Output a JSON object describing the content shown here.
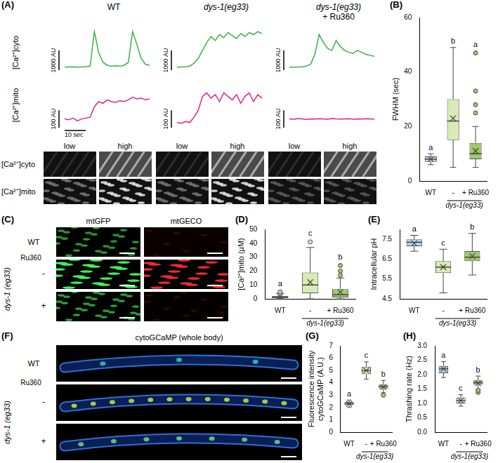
{
  "chart_data": [
    {
      "type": "line",
      "x": [
        0,
        2,
        4,
        6,
        8,
        10,
        12,
        14,
        16,
        18,
        20,
        22,
        24,
        26,
        28,
        30,
        32,
        34,
        36,
        38,
        40
      ],
      "xlim": [
        0,
        40
      ],
      "ylim": [
        0,
        2200
      ],
      "tick_labels": false,
      "series": [
        {
          "color": "#3cb043",
          "values": [
            150,
            160,
            170,
            150,
            160,
            180,
            200,
            1950,
            900,
            400,
            250,
            200,
            220,
            200,
            250,
            400,
            1950,
            1300,
            600,
            300,
            250
          ]
        }
      ],
      "y_scale_bar": {
        "value": 1000,
        "label": "1000 AU"
      }
    },
    {
      "type": "line",
      "x": [
        0,
        2,
        4,
        6,
        8,
        10,
        12,
        14,
        16,
        18,
        20,
        22,
        24,
        26,
        28,
        30,
        32,
        34,
        36,
        38,
        40
      ],
      "xlim": [
        0,
        40
      ],
      "ylim": [
        0,
        250
      ],
      "tick_labels": false,
      "series": [
        {
          "color": "#e0218a",
          "values": [
            50,
            45,
            55,
            40,
            50,
            55,
            60,
            120,
            150,
            140,
            160,
            150,
            145,
            155,
            150,
            160,
            175,
            165,
            170,
            160,
            165
          ]
        }
      ],
      "y_scale_bar": {
        "value": 100,
        "label": "100 AU"
      },
      "x_scale_bar": {
        "value": 10,
        "label": "10 sec"
      }
    },
    {
      "type": "line",
      "x": [
        0,
        2,
        4,
        6,
        8,
        10,
        12,
        14,
        16,
        18,
        20,
        22,
        24,
        26,
        28,
        30,
        32,
        34,
        36,
        38,
        40
      ],
      "xlim": [
        0,
        40
      ],
      "ylim": [
        0,
        2200
      ],
      "tick_labels": false,
      "series": [
        {
          "color": "#3cb043",
          "values": [
            150,
            160,
            170,
            200,
            350,
            600,
            1000,
            1400,
            1700,
            1500,
            1800,
            1650,
            1900,
            1750,
            1600,
            1850,
            1700,
            1900,
            1800,
            1950,
            1850
          ]
        }
      ],
      "y_scale_bar": {
        "value": 1000,
        "label": "1000 AU"
      }
    },
    {
      "type": "line",
      "x": [
        0,
        2,
        4,
        6,
        8,
        10,
        12,
        14,
        16,
        18,
        20,
        22,
        24,
        26,
        28,
        30,
        32,
        34,
        36,
        38,
        40
      ],
      "xlim": [
        0,
        40
      ],
      "ylim": [
        0,
        250
      ],
      "tick_labels": false,
      "series": [
        {
          "color": "#e0218a",
          "values": [
            30,
            25,
            35,
            30,
            60,
            100,
            180,
            200,
            170,
            190,
            150,
            200,
            180,
            160,
            190,
            140,
            180,
            200,
            150,
            190,
            170
          ]
        }
      ],
      "y_scale_bar": {
        "value": 100,
        "label": "100 AU"
      }
    },
    {
      "type": "line",
      "x": [
        0,
        2,
        4,
        6,
        8,
        10,
        12,
        14,
        16,
        18,
        20,
        22,
        24,
        26,
        28,
        30,
        32,
        34,
        36,
        38,
        40
      ],
      "xlim": [
        0,
        40
      ],
      "ylim": [
        0,
        2200
      ],
      "tick_labels": false,
      "series": [
        {
          "color": "#3cb043",
          "values": [
            150,
            150,
            160,
            170,
            200,
            300,
            800,
            1800,
            1400,
            1100,
            1000,
            1500,
            1200,
            1000,
            900,
            850,
            1000,
            900,
            800,
            750,
            700
          ]
        }
      ],
      "y_scale_bar": {
        "value": 1000,
        "label": "1000 AU"
      }
    },
    {
      "type": "line",
      "x": [
        0,
        2,
        4,
        6,
        8,
        10,
        12,
        14,
        16,
        18,
        20,
        22,
        24,
        26,
        28,
        30,
        32,
        34,
        36,
        38,
        40
      ],
      "xlim": [
        0,
        40
      ],
      "ylim": [
        0,
        250
      ],
      "tick_labels": false,
      "series": [
        {
          "color": "#e0218a",
          "values": [
            50,
            48,
            52,
            50,
            47,
            50,
            49,
            51,
            50,
            48,
            52,
            50,
            49,
            50,
            51,
            48,
            50,
            49,
            51,
            50,
            49
          ]
        }
      ],
      "y_scale_bar": {
        "value": 100,
        "label": "100 AU"
      }
    },
    {
      "type": "box",
      "panel": "(B)",
      "y_label": "FWHM (sec)",
      "categories": [
        "WT",
        "-",
        "+ Ru360"
      ],
      "group": {
        "label": "dys-1(eg33)",
        "categories": [
          "-",
          "+ Ru360"
        ]
      },
      "ylim": [
        0,
        60
      ],
      "yticks": [
        0,
        20,
        40,
        60
      ],
      "grid": false,
      "colors": [
        "#b4d3ee",
        "#d8ebb5",
        "#9dc96a"
      ],
      "boxes": [
        {
          "min": 6,
          "q1": 7,
          "median": 8,
          "q3": 9,
          "max": 10,
          "mean": 8,
          "outliers": []
        },
        {
          "min": 5,
          "q1": 15,
          "median": 22,
          "q3": 30,
          "max": 49,
          "mean": 23,
          "outliers": []
        },
        {
          "min": 5,
          "q1": 8,
          "median": 10,
          "q3": 14,
          "max": 20,
          "mean": 11,
          "outliers": [
            25,
            28,
            33,
            47
          ]
        }
      ],
      "significance": [
        "a",
        "b",
        "a"
      ]
    },
    {
      "type": "box",
      "panel": "(D)",
      "y_label": "[Ca²⁺]mito (μM)",
      "categories": [
        "WT",
        "-",
        "+ Ru360"
      ],
      "group": {
        "label": "dys-1(eg33)",
        "categories": [
          "-",
          "+ Ru360"
        ]
      },
      "ylim": [
        0,
        50
      ],
      "yticks": [
        0,
        10,
        20,
        30,
        40,
        50
      ],
      "grid": false,
      "colors": [
        "#b4d3ee",
        "#d8ebb5",
        "#9dc96a"
      ],
      "boxes": [
        {
          "min": 0,
          "q1": 0.5,
          "median": 1,
          "q3": 2,
          "max": 4,
          "mean": 1.5,
          "outliers": [
            5
          ]
        },
        {
          "min": 0,
          "q1": 4,
          "median": 10,
          "q3": 19,
          "max": 37,
          "mean": 12,
          "outliers": [
            41
          ]
        },
        {
          "min": 0,
          "q1": 1,
          "median": 3,
          "q3": 7,
          "max": 15,
          "mean": 5,
          "outliers": [
            17,
            20,
            24
          ]
        }
      ],
      "significance": [
        "a",
        "c",
        "b"
      ]
    },
    {
      "type": "box",
      "panel": "(E)",
      "y_label": "Intracellular pH",
      "categories": [
        "WT",
        "-",
        "+ Ru360"
      ],
      "group": {
        "label": "dys-1(eg33)",
        "categories": [
          "-",
          "+ Ru360"
        ]
      },
      "ylim": [
        4.5,
        8.0
      ],
      "yticks": [
        4.5,
        5.5,
        6.5,
        7.5
      ],
      "grid": false,
      "colors": [
        "#b4d3ee",
        "#d8ebb5",
        "#9dc96a"
      ],
      "boxes": [
        {
          "min": 6.9,
          "q1": 7.15,
          "median": 7.35,
          "q3": 7.5,
          "max": 7.7,
          "mean": 7.3,
          "outliers": []
        },
        {
          "min": 4.8,
          "q1": 5.8,
          "median": 6.1,
          "q3": 6.4,
          "max": 7.0,
          "mean": 6.1,
          "outliers": []
        },
        {
          "min": 5.7,
          "q1": 6.4,
          "median": 6.6,
          "q3": 6.9,
          "max": 7.8,
          "mean": 6.65,
          "outliers": []
        }
      ],
      "significance": [
        "a",
        "c",
        "b"
      ]
    },
    {
      "type": "box",
      "panel": "(G)",
      "y_label": [
        "Fluorescence intensity",
        "cytoGCaMP (A.U.)"
      ],
      "categories": [
        "WT",
        "-",
        "+ Ru360"
      ],
      "group": {
        "label": "dys-1(eg33)",
        "categories": [
          "-",
          "+ Ru360"
        ]
      },
      "ylim": [
        0,
        7
      ],
      "yticks": [
        0,
        1,
        2,
        3,
        4,
        5,
        6,
        7
      ],
      "grid": false,
      "colors": [
        "#b4d3ee",
        "#d8ebb5",
        "#9dc96a"
      ],
      "boxes": [
        {
          "min": 2.0,
          "q1": 2.2,
          "median": 2.3,
          "q3": 2.45,
          "max": 2.6,
          "mean": 2.3,
          "outliers": []
        },
        {
          "min": 4.3,
          "q1": 4.7,
          "median": 5.0,
          "q3": 5.3,
          "max": 5.7,
          "mean": 5.0,
          "outliers": []
        },
        {
          "min": 3.2,
          "q1": 3.5,
          "median": 3.7,
          "q3": 3.85,
          "max": 4.2,
          "mean": 3.65,
          "outliers": [
            3.0
          ]
        }
      ],
      "significance": [
        "a",
        "c",
        "b"
      ]
    },
    {
      "type": "box",
      "panel": "(H)",
      "y_label": "Thrashing rate (Hz)",
      "categories": [
        "WT",
        "-",
        "+ Ru360"
      ],
      "group": {
        "label": "dys-1(eg33)",
        "categories": [
          "-",
          "+ Ru360"
        ]
      },
      "ylim": [
        0,
        3
      ],
      "yticks": [
        {
          "value": 0,
          "label": "0.0"
        },
        0.5,
        {
          "value": 1,
          "label": "1.0"
        },
        1.5,
        {
          "value": 2,
          "label": "2.0"
        },
        2.5,
        {
          "value": 3,
          "label": "3.0"
        }
      ],
      "grid": false,
      "colors": [
        "#b4d3ee",
        "#d8ebb5",
        "#9dc96a"
      ],
      "boxes": [
        {
          "min": 1.9,
          "q1": 2.05,
          "median": 2.2,
          "q3": 2.3,
          "max": 2.45,
          "mean": 2.2,
          "outliers": []
        },
        {
          "min": 0.9,
          "q1": 1.0,
          "median": 1.1,
          "q3": 1.2,
          "max": 1.3,
          "mean": 1.1,
          "outliers": []
        },
        {
          "min": 1.5,
          "q1": 1.65,
          "median": 1.72,
          "q3": 1.8,
          "max": 1.95,
          "mean": 1.7,
          "outliers": [
            1.38,
            1.45
          ]
        }
      ],
      "significance": [
        "a",
        "c",
        "b"
      ]
    }
  ],
  "figure": {
    "A": {
      "label": "(A)",
      "columns": [
        [
          "WT"
        ],
        [
          "dys-1(eg33)"
        ],
        [
          "dys-1(eg33)",
          "+ Ru360"
        ]
      ],
      "trace_rows": [
        "[Ca²⁺]cyto",
        "[Ca²⁺]mito"
      ],
      "image_columns": [
        "low",
        "high"
      ],
      "image_rows": [
        "[Ca²⁺]cyto",
        "[Ca²⁺]mito"
      ]
    },
    "C": {
      "label": "(C)",
      "columns": [
        "mtGFP",
        "mtGECO"
      ],
      "rows": [
        "WT"
      ],
      "group": "dys-1 (eg33)",
      "treatment": "Ru360",
      "treatment_rows": [
        "-",
        "+"
      ]
    },
    "F": {
      "label": "(F)",
      "title": "cytoGCaMP (whole body)",
      "rows": [
        "WT"
      ],
      "group": "dys-1 (eg33)",
      "treatment": "Ru360",
      "treatment_rows": [
        "-",
        "+"
      ]
    }
  }
}
